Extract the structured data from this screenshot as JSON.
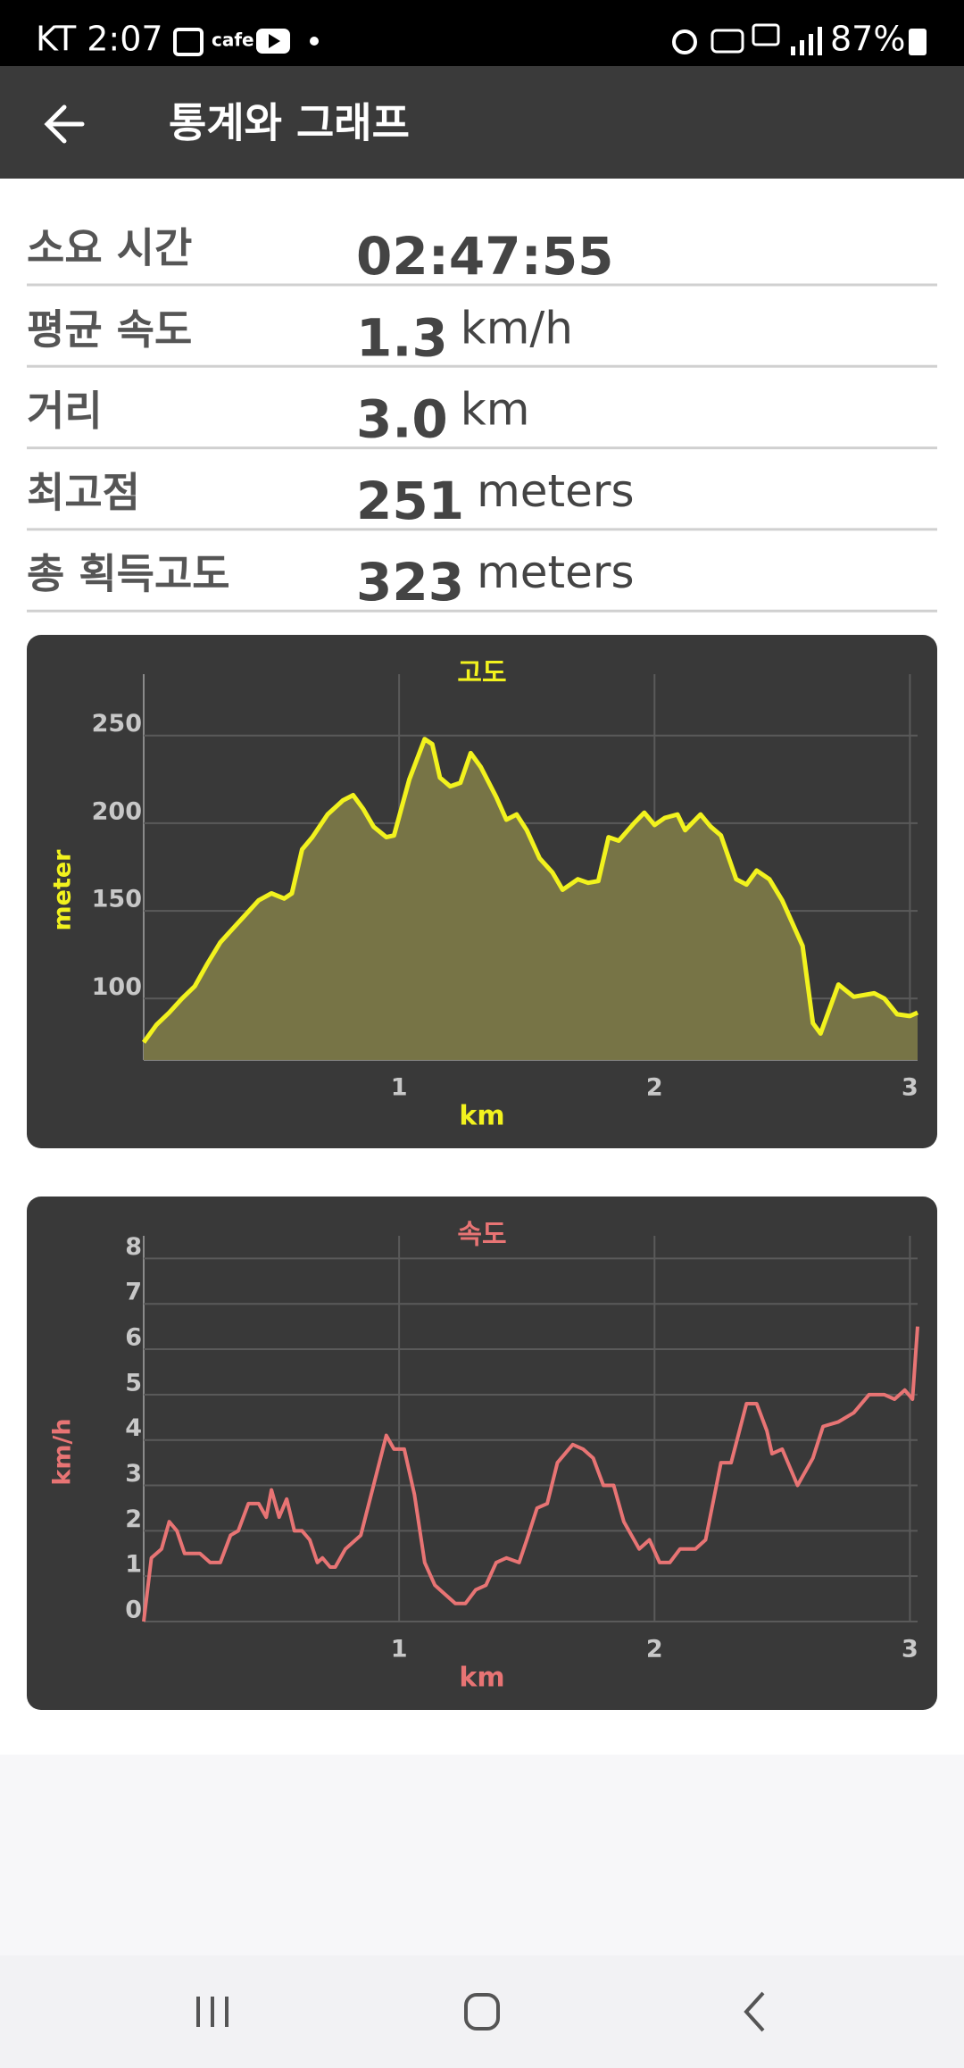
{
  "status_bar": {
    "carrier_time": "KT 2:07",
    "app_label": "cafe",
    "battery": "87%"
  },
  "app_bar": {
    "title": "통계와 그래프"
  },
  "stats": [
    {
      "label": "소요 시간",
      "value": "02:47:55"
    },
    {
      "label": "평균 속도",
      "value": "1.3",
      "unit": "km/h"
    },
    {
      "label": "거리",
      "value": "3.0",
      "unit": "km"
    },
    {
      "label": "최고점",
      "value": "251",
      "unit": "meters"
    },
    {
      "label": "총 획득고도",
      "value": "323",
      "unit": "meters"
    }
  ],
  "chart_data": [
    {
      "type": "area",
      "title": "고도",
      "y_label": "meter",
      "x_label": "km",
      "color": "#f2f21e",
      "fill_color": "#777446",
      "grid": true,
      "x": [
        0,
        0.05,
        0.1,
        0.15,
        0.2,
        0.25,
        0.3,
        0.35,
        0.4,
        0.45,
        0.5,
        0.55,
        0.58,
        0.62,
        0.66,
        0.72,
        0.78,
        0.82,
        0.86,
        0.9,
        0.95,
        0.98,
        1.04,
        1.1,
        1.13,
        1.16,
        1.2,
        1.24,
        1.28,
        1.32,
        1.38,
        1.42,
        1.46,
        1.5,
        1.55,
        1.6,
        1.64,
        1.7,
        1.74,
        1.78,
        1.82,
        1.86,
        1.92,
        1.96,
        2.0,
        2.04,
        2.09,
        2.12,
        2.18,
        2.22,
        2.26,
        2.32,
        2.36,
        2.4,
        2.45,
        2.5,
        2.58,
        2.62,
        2.65,
        2.72,
        2.78,
        2.86,
        2.9,
        2.95,
        3.0,
        3.03
      ],
      "values": [
        75,
        85,
        92,
        100,
        107,
        120,
        132,
        140,
        148,
        156,
        160,
        157,
        160,
        185,
        192,
        205,
        213,
        216,
        208,
        198,
        192,
        193,
        225,
        248,
        245,
        226,
        221,
        223,
        240,
        232,
        215,
        202,
        205,
        196,
        180,
        172,
        162,
        168,
        166,
        167,
        192,
        190,
        200,
        206,
        199,
        203,
        205,
        196,
        205,
        198,
        193,
        168,
        165,
        173,
        168,
        156,
        130,
        86,
        80,
        108,
        101,
        103,
        100,
        91,
        90,
        92
      ],
      "xlim": [
        0,
        3.03
      ],
      "ylim": [
        65,
        285
      ],
      "xticks": [
        1,
        2,
        3
      ],
      "yticks": [
        100,
        150,
        200,
        250
      ]
    },
    {
      "type": "line",
      "title": "속도",
      "y_label": "km/h",
      "x_label": "km",
      "color": "#e87474",
      "grid": true,
      "x": [
        0,
        0.03,
        0.07,
        0.1,
        0.13,
        0.16,
        0.22,
        0.26,
        0.3,
        0.34,
        0.37,
        0.41,
        0.45,
        0.48,
        0.5,
        0.53,
        0.56,
        0.59,
        0.62,
        0.65,
        0.68,
        0.7,
        0.73,
        0.75,
        0.79,
        0.85,
        0.9,
        0.95,
        0.98,
        1.02,
        1.06,
        1.1,
        1.14,
        1.18,
        1.22,
        1.26,
        1.3,
        1.34,
        1.38,
        1.42,
        1.47,
        1.5,
        1.54,
        1.58,
        1.62,
        1.68,
        1.72,
        1.76,
        1.8,
        1.84,
        1.88,
        1.94,
        1.98,
        2.02,
        2.06,
        2.1,
        2.16,
        2.2,
        2.26,
        2.3,
        2.36,
        2.4,
        2.44,
        2.46,
        2.5,
        2.56,
        2.62,
        2.66,
        2.72,
        2.78,
        2.84,
        2.9,
        2.94,
        2.98,
        3.01,
        3.03
      ],
      "values": [
        0,
        1.4,
        1.6,
        2.2,
        2.0,
        1.5,
        1.5,
        1.3,
        1.3,
        1.9,
        2.0,
        2.6,
        2.6,
        2.3,
        2.9,
        2.3,
        2.7,
        2.0,
        2.0,
        1.8,
        1.3,
        1.4,
        1.2,
        1.2,
        1.6,
        1.9,
        3.0,
        4.1,
        3.8,
        3.8,
        2.8,
        1.3,
        0.8,
        0.6,
        0.4,
        0.4,
        0.7,
        0.8,
        1.3,
        1.4,
        1.3,
        1.8,
        2.5,
        2.6,
        3.5,
        3.9,
        3.8,
        3.6,
        3.0,
        3.0,
        2.2,
        1.6,
        1.8,
        1.3,
        1.3,
        1.6,
        1.6,
        1.8,
        3.5,
        3.5,
        4.8,
        4.8,
        4.2,
        3.7,
        3.8,
        3.0,
        3.6,
        4.3,
        4.4,
        4.6,
        5.0,
        5.0,
        4.9,
        5.1,
        4.9,
        6.5
      ],
      "xlim": [
        0,
        3.03
      ],
      "ylim": [
        0,
        8.5
      ],
      "xticks": [
        1,
        2,
        3
      ],
      "yticks": [
        0,
        1,
        2,
        3,
        4,
        5,
        6,
        7,
        8
      ]
    }
  ]
}
